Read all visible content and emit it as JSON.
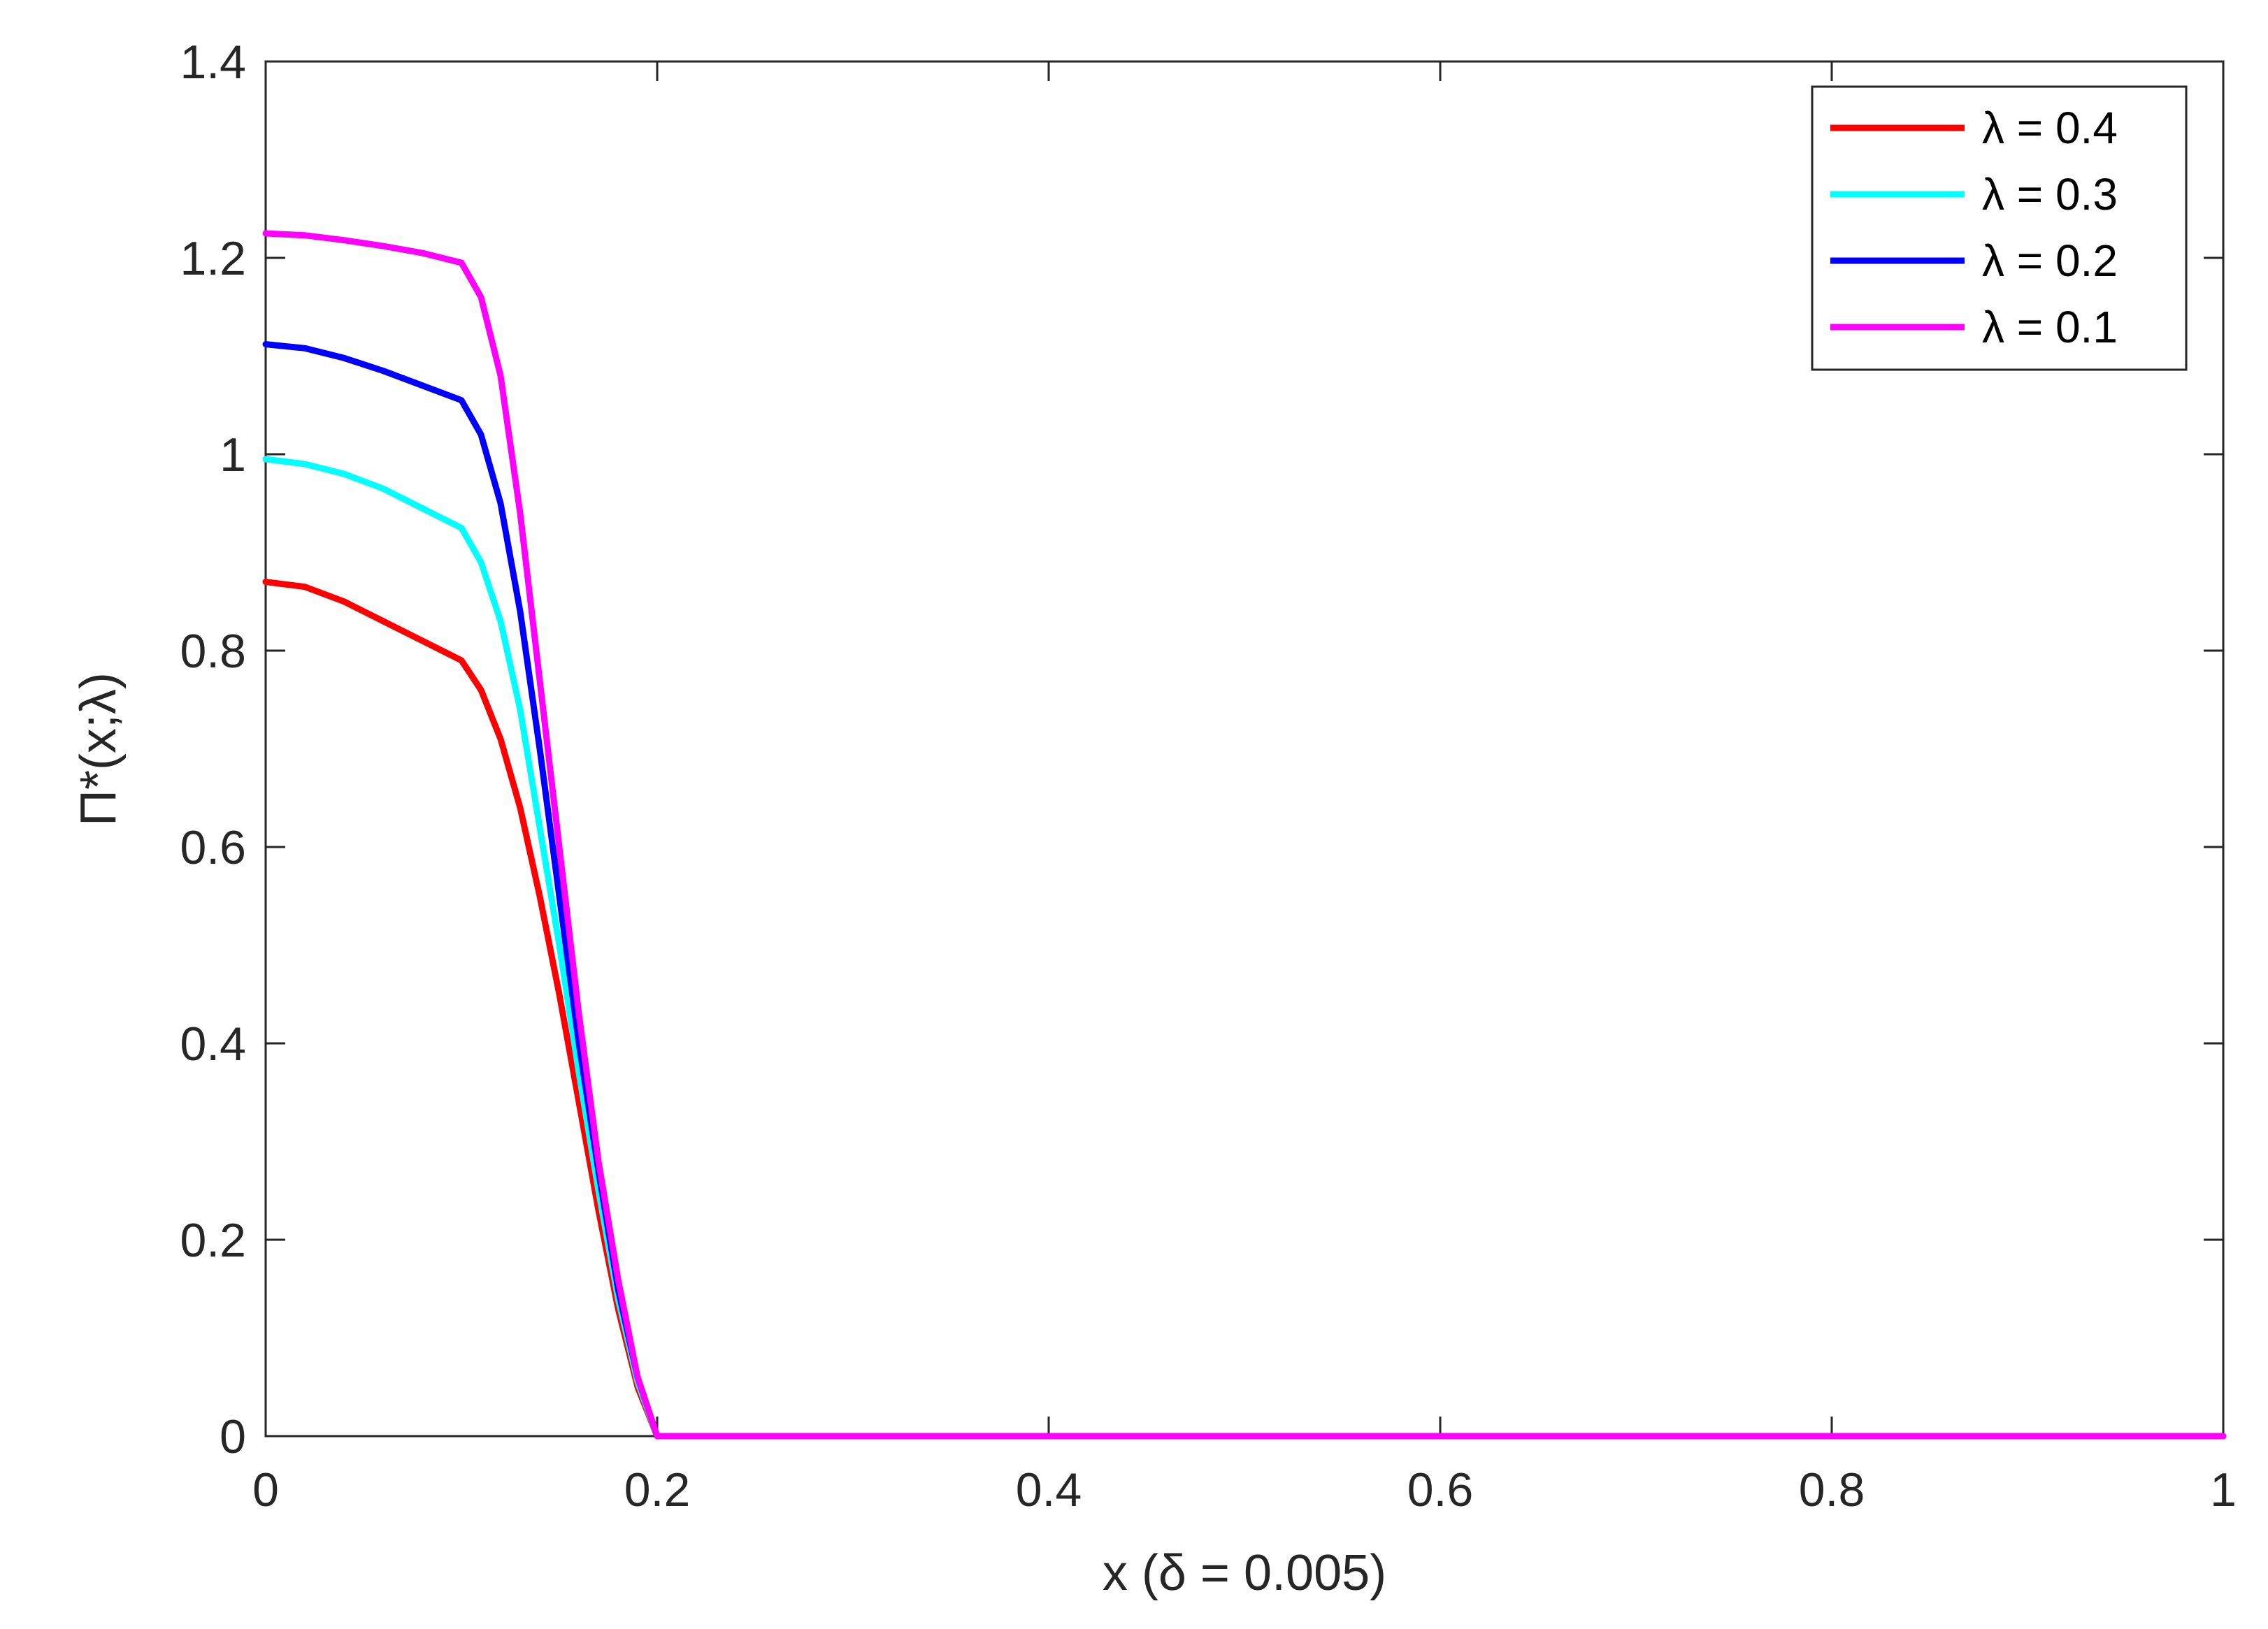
{
  "chart_data": {
    "type": "line",
    "title": "",
    "xlabel": "x (δ = 0.005)",
    "ylabel": "Π*(x;λ)",
    "xlim": [
      0,
      1
    ],
    "ylim": [
      0,
      1.4
    ],
    "xticks": [
      0,
      0.2,
      0.4,
      0.6,
      0.8,
      1
    ],
    "xtick_labels": [
      "0",
      "0.2",
      "0.4",
      "0.6",
      "0.8",
      "1"
    ],
    "yticks": [
      0,
      0.2,
      0.4,
      0.6,
      0.8,
      1,
      1.2,
      1.4
    ],
    "ytick_labels": [
      "0",
      "0.2",
      "0.4",
      "0.6",
      "0.8",
      "1",
      "1.2",
      "1.4"
    ],
    "grid": false,
    "legend_position": "top-right",
    "series": [
      {
        "name": "λ = 0.4",
        "color": "#ff0000",
        "x": [
          0,
          0.02,
          0.04,
          0.06,
          0.08,
          0.1,
          0.11,
          0.12,
          0.13,
          0.14,
          0.15,
          0.16,
          0.17,
          0.18,
          0.19,
          0.2,
          0.25,
          0.3,
          0.4,
          0.5,
          0.6,
          0.7,
          0.8,
          0.9,
          1
        ],
        "y": [
          0.87,
          0.865,
          0.85,
          0.83,
          0.81,
          0.79,
          0.76,
          0.71,
          0.64,
          0.55,
          0.45,
          0.34,
          0.23,
          0.13,
          0.05,
          0,
          0,
          0,
          0,
          0,
          0,
          0,
          0,
          0,
          0
        ]
      },
      {
        "name": "λ = 0.3",
        "color": "#00ffff",
        "x": [
          0,
          0.02,
          0.04,
          0.06,
          0.08,
          0.1,
          0.11,
          0.12,
          0.13,
          0.14,
          0.15,
          0.16,
          0.17,
          0.18,
          0.19,
          0.2,
          0.25,
          0.3,
          0.4,
          0.5,
          0.6,
          0.7,
          0.8,
          0.9,
          1
        ],
        "y": [
          0.995,
          0.99,
          0.98,
          0.965,
          0.945,
          0.925,
          0.89,
          0.83,
          0.74,
          0.62,
          0.5,
          0.37,
          0.25,
          0.14,
          0.055,
          0,
          0,
          0,
          0,
          0,
          0,
          0,
          0,
          0,
          0
        ]
      },
      {
        "name": "λ = 0.2",
        "color": "#0000ff",
        "x": [
          0,
          0.02,
          0.04,
          0.06,
          0.08,
          0.1,
          0.11,
          0.12,
          0.13,
          0.14,
          0.15,
          0.16,
          0.17,
          0.18,
          0.19,
          0.2,
          0.25,
          0.3,
          0.4,
          0.5,
          0.6,
          0.7,
          0.8,
          0.9,
          1
        ],
        "y": [
          1.112,
          1.108,
          1.098,
          1.085,
          1.07,
          1.055,
          1.02,
          0.95,
          0.84,
          0.7,
          0.55,
          0.4,
          0.27,
          0.15,
          0.06,
          0,
          0,
          0,
          0,
          0,
          0,
          0,
          0,
          0,
          0
        ]
      },
      {
        "name": "λ = 0.1",
        "color": "#ff00ff",
        "x": [
          0,
          0.02,
          0.04,
          0.06,
          0.08,
          0.1,
          0.11,
          0.12,
          0.13,
          0.14,
          0.15,
          0.16,
          0.17,
          0.18,
          0.19,
          0.2,
          0.25,
          0.3,
          0.4,
          0.5,
          0.6,
          0.7,
          0.8,
          0.9,
          1
        ],
        "y": [
          1.225,
          1.223,
          1.218,
          1.212,
          1.205,
          1.195,
          1.16,
          1.08,
          0.94,
          0.77,
          0.6,
          0.43,
          0.28,
          0.16,
          0.06,
          0,
          0,
          0,
          0,
          0,
          0,
          0,
          0,
          0,
          0
        ]
      }
    ]
  }
}
